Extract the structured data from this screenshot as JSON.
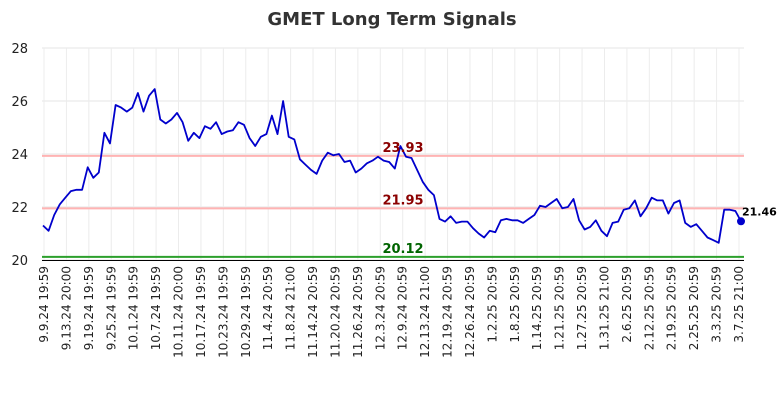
{
  "chart_data": {
    "type": "line",
    "title": "GMET Long Term Signals",
    "xlabel": "",
    "ylabel": "",
    "ylim": [
      20,
      28
    ],
    "y_ticks": [
      20,
      22,
      24,
      26,
      28
    ],
    "grid": true,
    "x_tick_labels": [
      "9.9.24 19:59",
      "9.13.24 20:00",
      "9.19.24 19:59",
      "9.25.24 19:59",
      "10.1.24 19:59",
      "10.7.24 19:59",
      "10.11.24 20:00",
      "10.17.24 19:59",
      "10.23.24 19:59",
      "10.29.24 19:59",
      "11.4.24 20:59",
      "11.8.24 21:00",
      "11.14.24 20:59",
      "11.20.24 20:59",
      "11.26.24 20:59",
      "12.3.24 20:59",
      "12.9.24 20:59",
      "12.13.24 21:00",
      "12.19.24 20:59",
      "12.26.24 20:59",
      "1.2.25 20:59",
      "1.8.25 20:59",
      "1.14.25 20:59",
      "1.21.25 20:59",
      "1.27.25 20:59",
      "1.31.25 21:00",
      "2.6.25 20:59",
      "2.12.25 20:59",
      "2.19.25 20:59",
      "2.25.25 20:59",
      "3.3.25 20:59",
      "3.7.25 21:00"
    ],
    "reference_lines": [
      {
        "value": 23.93,
        "label": "23.93",
        "color": "#ffb3b3",
        "label_color": "#8b0000"
      },
      {
        "value": 21.95,
        "label": "21.95",
        "color": "#ffb3b3",
        "label_color": "#8b0000"
      },
      {
        "value": 20.12,
        "label": "20.12",
        "color": "#2ca02c",
        "label_color": "#006400"
      }
    ],
    "last_point": {
      "value": 21.46,
      "label": "21.46"
    },
    "series": [
      {
        "color": "#0000cc",
        "values": [
          21.3,
          21.1,
          21.7,
          22.1,
          22.35,
          22.6,
          22.65,
          22.65,
          23.5,
          23.1,
          23.3,
          24.8,
          24.4,
          25.85,
          25.75,
          25.6,
          25.75,
          26.3,
          25.6,
          26.2,
          26.45,
          25.3,
          25.15,
          25.3,
          25.55,
          25.2,
          24.5,
          24.8,
          24.6,
          25.05,
          24.95,
          25.2,
          24.75,
          24.85,
          24.9,
          25.2,
          25.1,
          24.6,
          24.3,
          24.65,
          24.75,
          25.45,
          24.75,
          26.0,
          24.65,
          24.55,
          23.8,
          23.6,
          23.4,
          23.25,
          23.75,
          24.05,
          23.95,
          24.0,
          23.7,
          23.75,
          23.3,
          23.45,
          23.65,
          23.75,
          23.9,
          23.75,
          23.7,
          23.45,
          24.3,
          23.9,
          23.85,
          23.4,
          22.95,
          22.65,
          22.45,
          21.55,
          21.45,
          21.65,
          21.4,
          21.45,
          21.45,
          21.2,
          21.0,
          20.85,
          21.1,
          21.05,
          21.5,
          21.55,
          21.5,
          21.5,
          21.4,
          21.55,
          21.7,
          22.05,
          22.0,
          22.15,
          22.3,
          21.95,
          22.0,
          22.3,
          21.5,
          21.15,
          21.25,
          21.5,
          21.1,
          20.9,
          21.4,
          21.45,
          21.9,
          21.95,
          22.25,
          21.65,
          21.95,
          22.35,
          22.25,
          22.25,
          21.75,
          22.15,
          22.25,
          21.4,
          21.25,
          21.35,
          21.1,
          20.85,
          20.75,
          20.65,
          21.9,
          21.9,
          21.85,
          21.46
        ]
      }
    ]
  }
}
